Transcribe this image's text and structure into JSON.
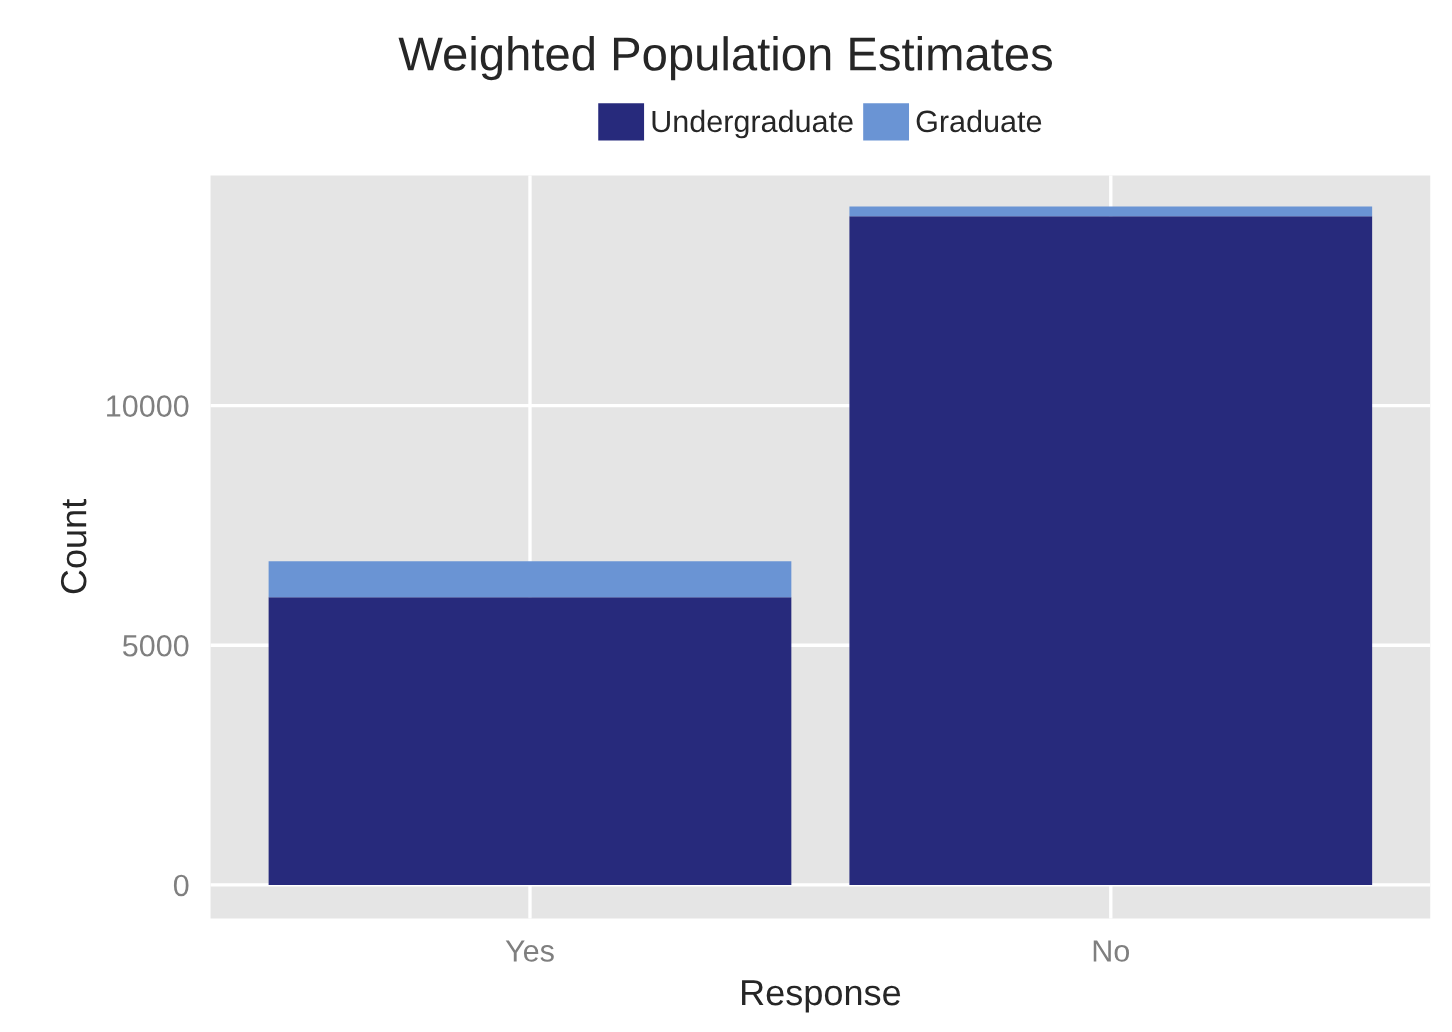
{
  "chart_data": {
    "type": "bar",
    "title": "Weighted Population Estimates",
    "xlabel": "Response",
    "ylabel": "Count",
    "categories": [
      "Yes",
      "No"
    ],
    "series": [
      {
        "name": "Undergraduate",
        "color": "#272a7c",
        "values": [
          6000,
          13950
        ]
      },
      {
        "name": "Graduate",
        "color": "#6a94d4",
        "values": [
          750,
          200
        ]
      }
    ],
    "stacked": true,
    "ylim": [
      -700,
      14800
    ],
    "yticks": [
      0,
      5000,
      10000
    ],
    "grid": true,
    "legend": "top"
  }
}
